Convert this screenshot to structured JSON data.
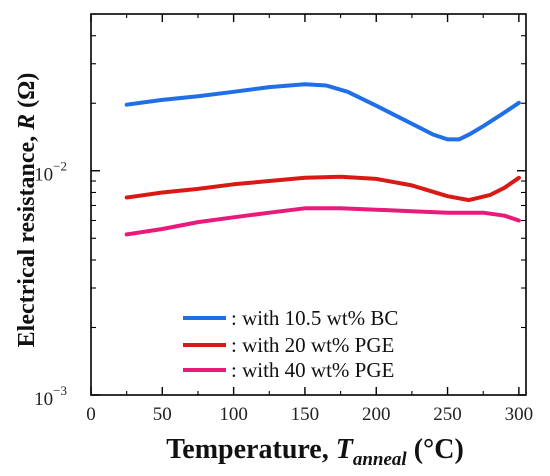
{
  "chart_data": {
    "type": "line",
    "xlabel": {
      "text": "Temperature, ",
      "var": "T",
      "sub": "anneal",
      "unit": " (°C)"
    },
    "ylabel": {
      "text": "Electrical resistance, ",
      "var": "R",
      "unit": " (Ω)"
    },
    "xlim": [
      0,
      305
    ],
    "ylim": [
      0.001,
      0.05
    ],
    "yscale": "log",
    "x_ticks": [
      0,
      50,
      100,
      150,
      200,
      250,
      300
    ],
    "y_ticks": [
      {
        "value": 0.001,
        "base": "10",
        "exp": "−3"
      },
      {
        "value": 0.01,
        "base": "10",
        "exp": "−2"
      }
    ],
    "legend_position": "lower-center",
    "series": [
      {
        "name": ": with 10.5 wt% BC",
        "color": "#1f6fe8",
        "x": [
          25,
          50,
          75,
          100,
          125,
          150,
          165,
          180,
          200,
          220,
          240,
          250,
          258,
          265,
          275,
          290,
          300
        ],
        "y": [
          0.0197,
          0.0207,
          0.0215,
          0.0225,
          0.0236,
          0.0243,
          0.024,
          0.0225,
          0.0195,
          0.0168,
          0.0145,
          0.0138,
          0.0138,
          0.0145,
          0.0158,
          0.0182,
          0.0201
        ]
      },
      {
        "name": ": with 20 wt% PGE",
        "color": "#d91a14",
        "x": [
          25,
          50,
          75,
          100,
          125,
          150,
          175,
          200,
          225,
          250,
          265,
          280,
          290,
          300
        ],
        "y": [
          0.0076,
          0.008,
          0.0083,
          0.0087,
          0.009,
          0.0093,
          0.0094,
          0.0092,
          0.0086,
          0.0077,
          0.0074,
          0.0078,
          0.0084,
          0.0093
        ]
      },
      {
        "name": ": with 40 wt% PGE",
        "color": "#ea1a7a",
        "x": [
          25,
          50,
          75,
          100,
          125,
          150,
          175,
          200,
          225,
          250,
          275,
          290,
          300
        ],
        "y": [
          0.0052,
          0.0055,
          0.0059,
          0.0062,
          0.0065,
          0.0068,
          0.0068,
          0.0067,
          0.0066,
          0.0065,
          0.0065,
          0.0063,
          0.006
        ]
      }
    ]
  }
}
